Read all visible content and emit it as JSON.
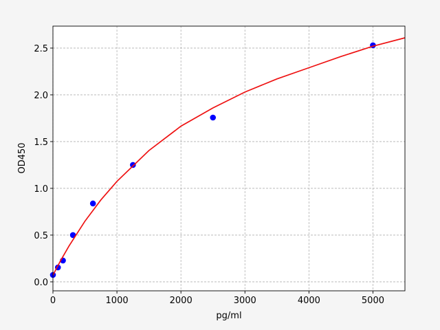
{
  "chart_data": {
    "type": "scatter",
    "title": "",
    "xlabel": "pg/ml",
    "ylabel": "OD450",
    "xlim": [
      0,
      5500
    ],
    "ylim": [
      -0.096,
      2.735
    ],
    "xticks": [
      0,
      1000,
      2000,
      3000,
      4000,
      5000
    ],
    "xtick_labels": [
      "0",
      "1000",
      "2000",
      "3000",
      "4000",
      "5000"
    ],
    "yticks": [
      0.0,
      0.5,
      1.0,
      1.5,
      2.0,
      2.5
    ],
    "ytick_labels": [
      "0.0",
      "0.5",
      "1.0",
      "1.5",
      "2.0",
      "2.5"
    ],
    "grid": true,
    "series": [
      {
        "type": "scatter",
        "color": "#0000ff",
        "x": [
          0,
          78.125,
          156.25,
          312.5,
          625,
          1250,
          2500,
          5000
        ],
        "y": [
          0.074,
          0.154,
          0.228,
          0.5,
          0.838,
          1.25,
          1.757,
          2.53
        ]
      },
      {
        "type": "line",
        "color": "#ee1111",
        "x": [
          0,
          62.5,
          125,
          250,
          500,
          750,
          1000,
          1500,
          2000,
          2500,
          3000,
          3500,
          4000,
          4500,
          5000,
          5500
        ],
        "y": [
          0.07,
          0.153,
          0.233,
          0.383,
          0.648,
          0.877,
          1.075,
          1.404,
          1.665,
          1.86,
          2.03,
          2.17,
          2.29,
          2.41,
          2.52,
          2.61
        ]
      }
    ]
  }
}
